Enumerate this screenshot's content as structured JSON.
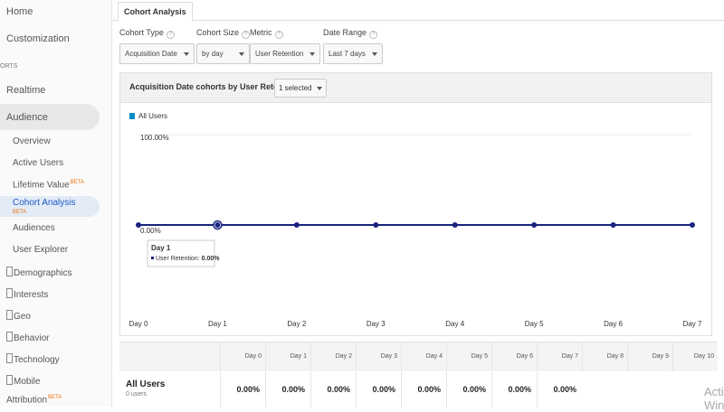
{
  "sidebar": {
    "items": [
      {
        "label": "Home"
      },
      {
        "label": "Customization"
      },
      {
        "label": "ORTS"
      },
      {
        "label": "Realtime"
      },
      {
        "label": "Audience"
      },
      {
        "label": "Overview"
      },
      {
        "label": "Active Users"
      },
      {
        "label": "Lifetime Value",
        "badge": "BETA"
      },
      {
        "label": "Cohort Analysis",
        "badge": "BETA"
      },
      {
        "label": "Audiences"
      },
      {
        "label": "User Explorer"
      },
      {
        "label": "Demographics"
      },
      {
        "label": "Interests"
      },
      {
        "label": "Geo"
      },
      {
        "label": "Behavior"
      },
      {
        "label": "Technology"
      },
      {
        "label": "Mobile"
      },
      {
        "label": "Attribution",
        "badge": "BETA"
      }
    ]
  },
  "tab": "Cohort Analysis",
  "controls": [
    {
      "label": "Cohort Type",
      "value": "Acquisition Date"
    },
    {
      "label": "Cohort Size",
      "value": "by day"
    },
    {
      "label": "Metric",
      "value": "User Retention"
    },
    {
      "label": "Date Range",
      "value": "Last 7 days"
    }
  ],
  "panel": {
    "title": "Acquisition Date cohorts by User Retention",
    "selector": "1 selected"
  },
  "chart_data": {
    "type": "line",
    "categories": [
      "Day 0",
      "Day 1",
      "Day 2",
      "Day 3",
      "Day 4",
      "Day 5",
      "Day 6",
      "Day 7"
    ],
    "series": [
      {
        "name": "All Users",
        "color": "#1a237e",
        "values": [
          0,
          0,
          0,
          0,
          0,
          0,
          0,
          0
        ]
      }
    ],
    "ylim": [
      0,
      100
    ],
    "yticks": [
      {
        "value": 0,
        "label": "0.00%"
      },
      {
        "value": 100,
        "label": "100.00%"
      }
    ],
    "legend_color": "#058dc7",
    "tooltip": {
      "title": "Day 1",
      "label": "User Retention:",
      "value": "0.00%"
    }
  },
  "table": {
    "columns": [
      "Day 0",
      "Day 1",
      "Day 2",
      "Day 3",
      "Day 4",
      "Day 5",
      "Day 6",
      "Day 7",
      "Day 8",
      "Day 9",
      "Day 10"
    ],
    "row": {
      "name": "All Users",
      "sub": "0 users",
      "cells": [
        "0.00%",
        "0.00%",
        "0.00%",
        "0.00%",
        "0.00%",
        "0.00%",
        "0.00%",
        "0.00%"
      ]
    }
  },
  "watermark": "Activate Windows"
}
